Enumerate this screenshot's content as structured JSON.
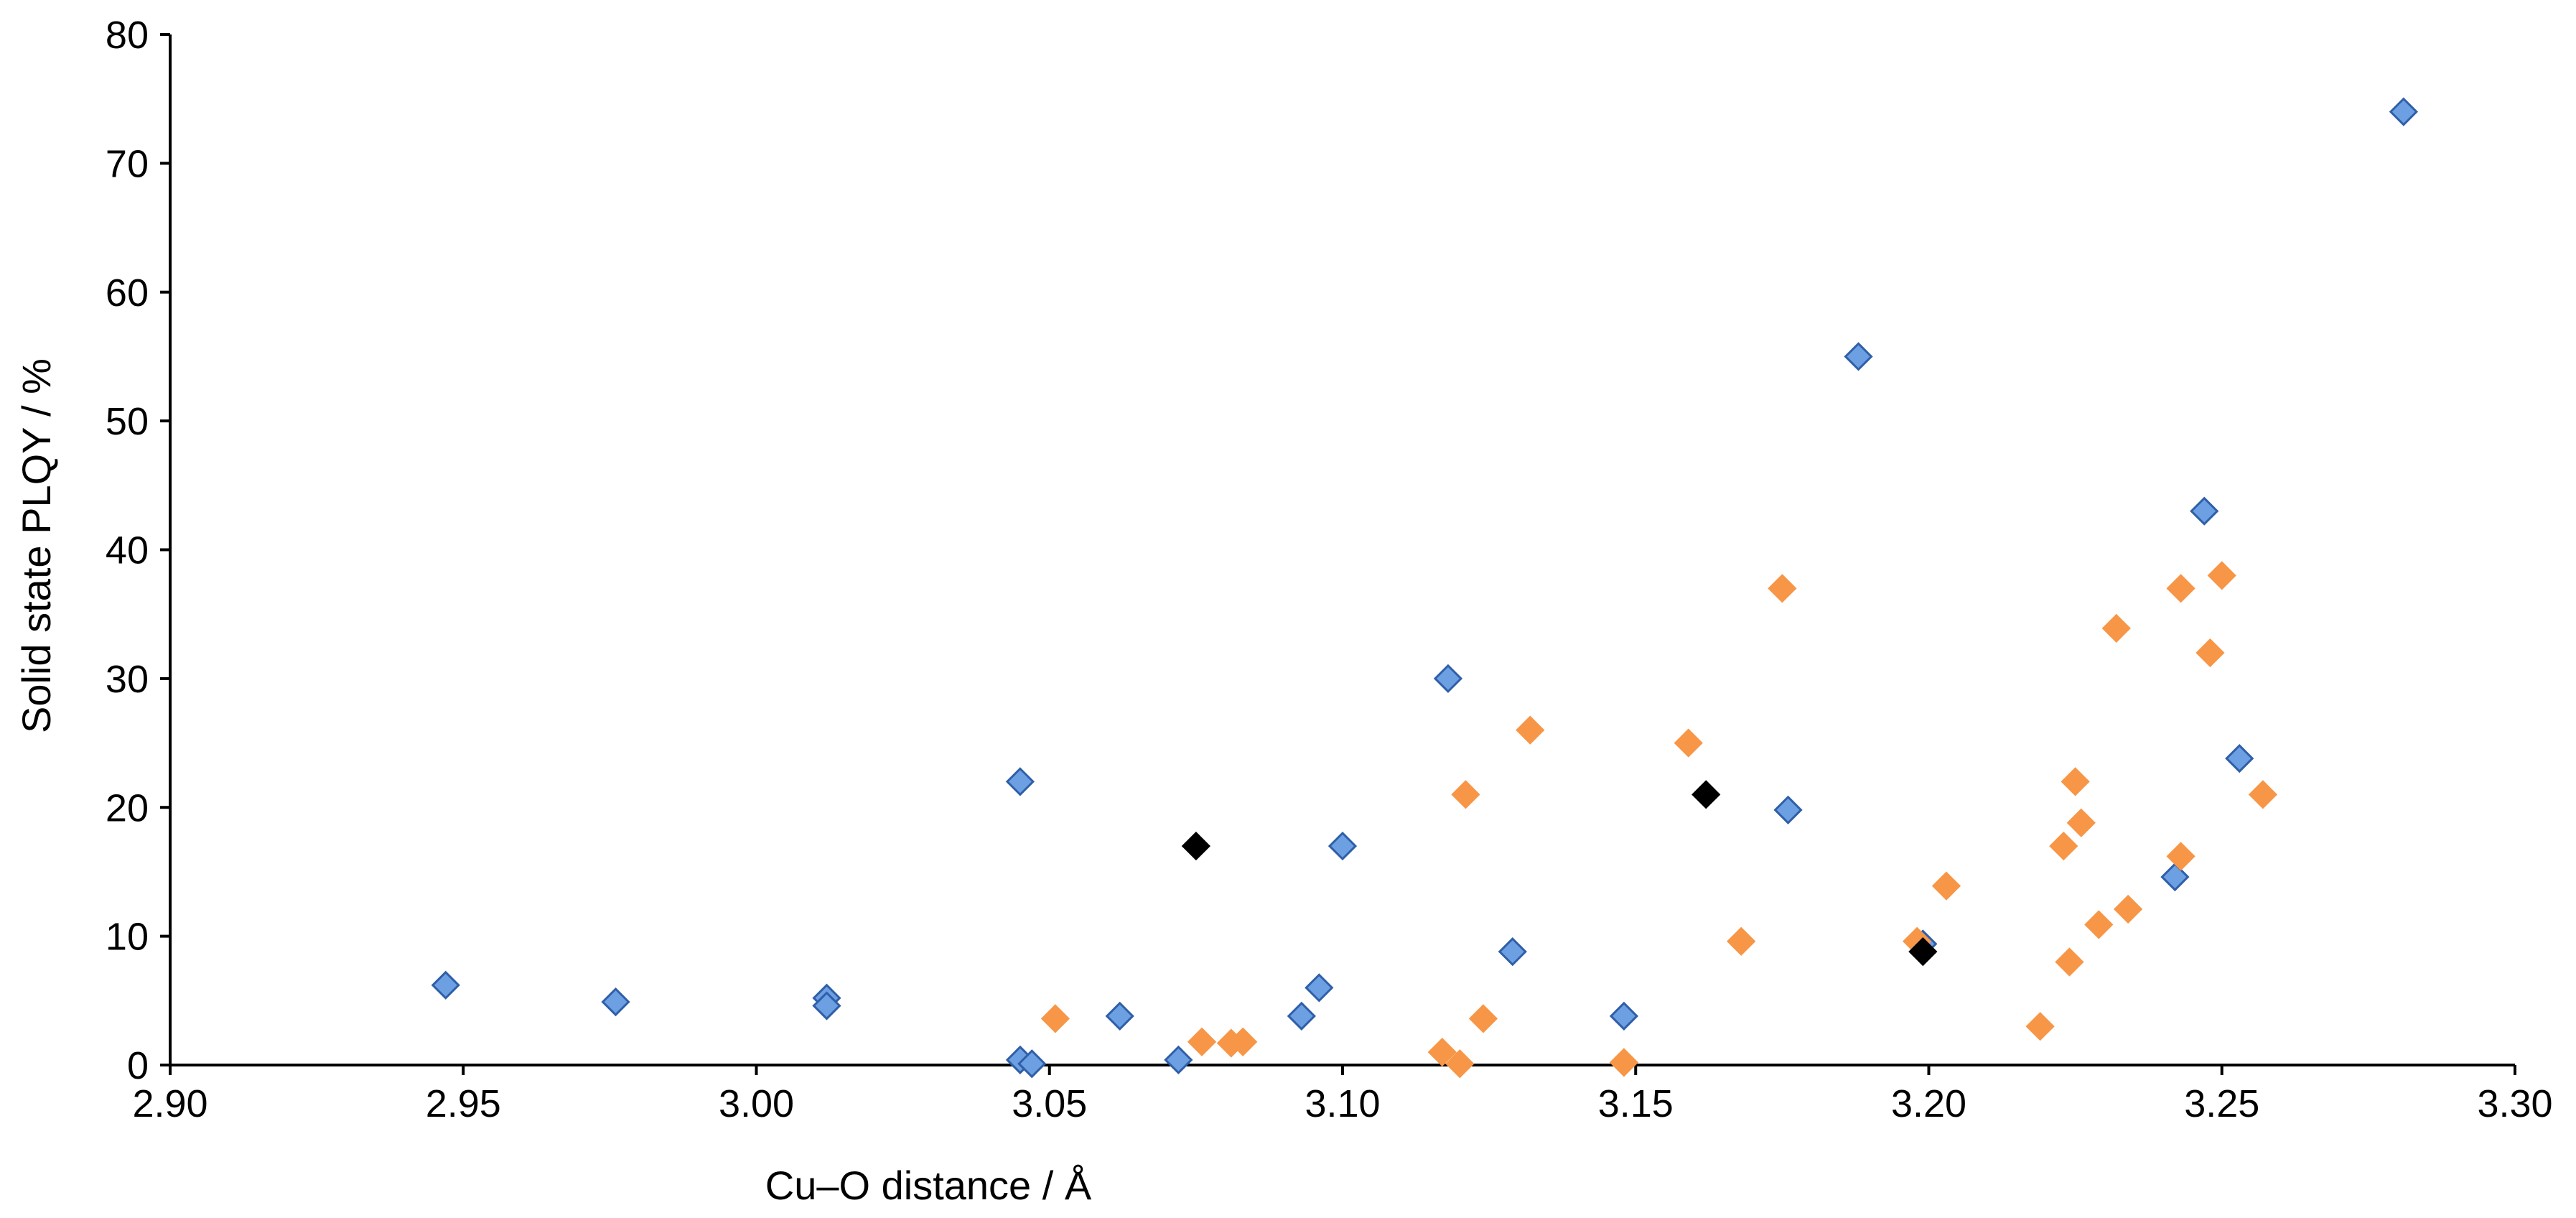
{
  "chart_data": {
    "type": "scatter",
    "title": "",
    "xlabel": "Cu–O distance / Å",
    "ylabel": "Solid state PLQY / %",
    "xlim": [
      2.9,
      3.3
    ],
    "ylim": [
      0,
      80
    ],
    "x_ticks": [
      2.9,
      2.95,
      3.0,
      3.05,
      3.1,
      3.15,
      3.2,
      3.25,
      3.3
    ],
    "x_tick_labels": [
      "2.90",
      "2.95",
      "3.00",
      "3.05",
      "3.10",
      "3.15",
      "3.20",
      "3.25",
      "3.30"
    ],
    "y_ticks": [
      0,
      10,
      20,
      30,
      40,
      50,
      60,
      70,
      80
    ],
    "y_tick_labels": [
      "0",
      "10",
      "20",
      "30",
      "40",
      "50",
      "60",
      "70",
      "80"
    ],
    "grid": false,
    "legend": "none",
    "marker": "diamond",
    "series": [
      {
        "name": "blue",
        "color": "#6d9fe3",
        "edge_color": "#2f5fa8",
        "points": [
          [
            2.947,
            6.2
          ],
          [
            2.976,
            4.9
          ],
          [
            3.012,
            5.2
          ],
          [
            3.012,
            4.6
          ],
          [
            3.045,
            22.0
          ],
          [
            3.045,
            0.4
          ],
          [
            3.047,
            0.1
          ],
          [
            3.062,
            3.8
          ],
          [
            3.072,
            0.4
          ],
          [
            3.093,
            3.8
          ],
          [
            3.096,
            6.0
          ],
          [
            3.1,
            17.0
          ],
          [
            3.118,
            30.0
          ],
          [
            3.129,
            8.8
          ],
          [
            3.148,
            3.8
          ],
          [
            3.176,
            19.8
          ],
          [
            3.188,
            55.0
          ],
          [
            3.199,
            9.4
          ],
          [
            3.242,
            14.6
          ],
          [
            3.247,
            43.0
          ],
          [
            3.253,
            23.8
          ],
          [
            3.281,
            74.0
          ]
        ]
      },
      {
        "name": "orange",
        "color": "#f79646",
        "edge_color": "#f79646",
        "points": [
          [
            3.051,
            3.6
          ],
          [
            3.076,
            1.8
          ],
          [
            3.081,
            1.7
          ],
          [
            3.083,
            1.8
          ],
          [
            3.117,
            1.0
          ],
          [
            3.12,
            0.1
          ],
          [
            3.121,
            21.0
          ],
          [
            3.124,
            3.6
          ],
          [
            3.132,
            26.0
          ],
          [
            3.148,
            0.2
          ],
          [
            3.159,
            25.0
          ],
          [
            3.168,
            9.6
          ],
          [
            3.175,
            37.0
          ],
          [
            3.198,
            9.6
          ],
          [
            3.203,
            13.9
          ],
          [
            3.219,
            3.0
          ],
          [
            3.223,
            17.0
          ],
          [
            3.224,
            8.0
          ],
          [
            3.225,
            22.0
          ],
          [
            3.226,
            18.8
          ],
          [
            3.229,
            10.9
          ],
          [
            3.232,
            33.9
          ],
          [
            3.234,
            12.1
          ],
          [
            3.243,
            37.0
          ],
          [
            3.243,
            16.2
          ],
          [
            3.248,
            32.0
          ],
          [
            3.25,
            38.0
          ],
          [
            3.257,
            21.0
          ]
        ]
      },
      {
        "name": "black",
        "color": "#000000",
        "edge_color": "#000000",
        "points": [
          [
            3.075,
            17.0
          ],
          [
            3.162,
            21.0
          ],
          [
            3.199,
            8.8
          ]
        ]
      }
    ]
  }
}
